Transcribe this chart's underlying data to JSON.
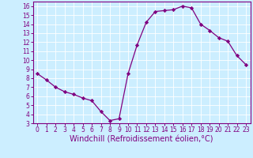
{
  "x": [
    0,
    1,
    2,
    3,
    4,
    5,
    6,
    7,
    8,
    9,
    10,
    11,
    12,
    13,
    14,
    15,
    16,
    17,
    18,
    19,
    20,
    21,
    22,
    23
  ],
  "y": [
    8.5,
    7.8,
    7.0,
    6.5,
    6.2,
    5.8,
    5.5,
    4.3,
    3.3,
    3.5,
    8.5,
    11.7,
    14.2,
    15.4,
    15.5,
    15.6,
    16.0,
    15.8,
    14.0,
    13.3,
    12.5,
    12.1,
    10.5,
    9.5
  ],
  "line_color": "#800080",
  "marker": "D",
  "marker_size": 2.2,
  "bg_color": "#cceeff",
  "grid_color": "#ffffff",
  "xlabel": "Windchill (Refroidissement éolien,°C)",
  "xlim": [
    -0.5,
    23.5
  ],
  "ylim": [
    3,
    16.5
  ],
  "yticks": [
    3,
    4,
    5,
    6,
    7,
    8,
    9,
    10,
    11,
    12,
    13,
    14,
    15,
    16
  ],
  "xticks": [
    0,
    1,
    2,
    3,
    4,
    5,
    6,
    7,
    8,
    9,
    10,
    11,
    12,
    13,
    14,
    15,
    16,
    17,
    18,
    19,
    20,
    21,
    22,
    23
  ],
  "tick_fontsize": 5.5,
  "xlabel_fontsize": 7,
  "label_color": "#800080",
  "axis_color": "#800080",
  "linewidth": 0.9
}
